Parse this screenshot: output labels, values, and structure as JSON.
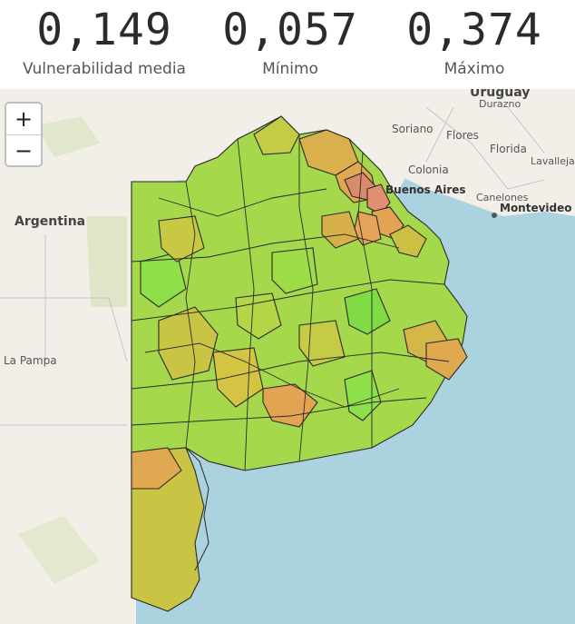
{
  "stats": [
    {
      "value": "0,149",
      "label": "Vulnerabilidad media"
    },
    {
      "value": "0,057",
      "label": "Mínimo"
    },
    {
      "value": "0,374",
      "label": "Máximo"
    }
  ],
  "zoom": {
    "in": "+",
    "out": "−"
  },
  "map_labels": {
    "argentina": "Argentina",
    "la_pampa": "La Pampa",
    "uruguay": "Uruguay",
    "durazno": "Durazno",
    "soriano": "Soriano",
    "flores": "Flores",
    "florida": "Florida",
    "lavalleja": "Lavalleja",
    "colonia": "Colonia",
    "buenos_aires": "Buenos Aires",
    "canelones": "Canelones",
    "montevideo": "Montevideo"
  },
  "colors": {
    "water": "#aad3df",
    "land": "#f2efe9",
    "low": "#86e04a",
    "mid": "#c8c842",
    "high": "#e2a453",
    "max": "#d98a6a",
    "border": "#2a2a2a"
  }
}
